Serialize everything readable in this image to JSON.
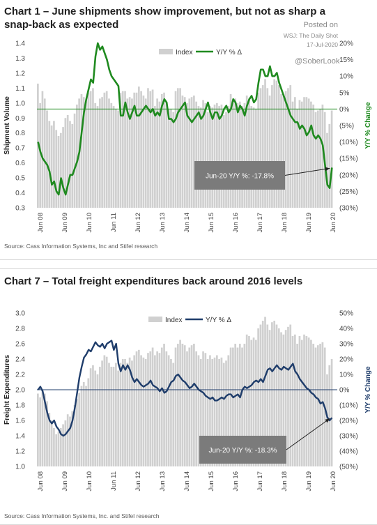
{
  "watermark": {
    "posted_on": "Posted on",
    "source_line": "WSJ: The Daily Shot",
    "date": "17-Jul-2020",
    "handle": "@SoberLook"
  },
  "chart_data": [
    {
      "type": "bar",
      "title": "Chart 1 – June shipments show improvement, but not as sharp a snap-back as expected",
      "ylabel": "Shipment Volume",
      "y2label": "Y/Y % Change",
      "ylim": [
        0.3,
        1.4
      ],
      "y2lim": [
        -30,
        20
      ],
      "yticks": [
        "1.4",
        "1.3",
        "1.2",
        "1.1",
        "1.0",
        "0.9",
        "0.8",
        "0.7",
        "0.6",
        "0.5",
        "0.4",
        "0.3"
      ],
      "y2ticks": [
        "20%",
        "15%",
        "10%",
        "5%",
        "0%",
        "(5%)",
        "(10%)",
        "(15%)",
        "(20%)",
        "(25%)",
        "(30%)"
      ],
      "xticks": [
        "Jun 08",
        "Jun 09",
        "Jun 10",
        "Jun 11",
        "Jun 12",
        "Jun 13",
        "Jun 14",
        "Jun 15",
        "Jun 16",
        "Jun 17",
        "Jun 18",
        "Jun 19",
        "Jun 20"
      ],
      "legend": [
        "Index",
        "Y/Y % Δ"
      ],
      "legend_position": "top-right",
      "index_color": "#d0d0d0",
      "line_color": "#1f8a1f",
      "annotation": "Jun-20 Y/Y %: -17.8%",
      "source": "Source: Cass Information Systems, Inc and Stifel research",
      "x_start": "Jun 08",
      "x_end": "Jun 20",
      "series": [
        {
          "name": "Index",
          "values": [
            1.13,
            1.0,
            1.08,
            1.03,
            0.95,
            0.88,
            0.85,
            0.88,
            0.82,
            0.78,
            0.8,
            0.84,
            0.9,
            0.92,
            0.88,
            0.86,
            0.93,
            0.99,
            1.03,
            1.06,
            1.04,
            1.01,
            1.07,
            1.08,
            1.1,
            1.0,
            0.98,
            1.03,
            1.04,
            1.07,
            1.08,
            1.03,
            1.0,
            0.98,
            0.96,
            0.95,
            1.07,
            1.08,
            1.08,
            1.03,
            1.04,
            1.03,
            1.07,
            1.07,
            1.11,
            1.08,
            1.05,
            1.03,
            1.1,
            1.08,
            1.09,
            0.98,
            1.03,
            1.01,
            1.06,
            1.07,
            1.0,
            0.96,
            0.96,
            0.94,
            1.08,
            1.1,
            1.1,
            1.05,
            1.04,
            1.0,
            1.03,
            1.04,
            1.05,
            1.01,
            0.98,
            0.97,
            1.02,
            1.0,
            0.94,
            0.98,
            0.97,
            0.99,
            1.0,
            0.98,
            0.99,
            0.92,
            0.94,
            0.98,
            1.06,
            1.02,
            1.03,
            1.0,
            1.01,
            0.98,
            1.0,
            1.05,
            1.03,
            0.98,
            0.97,
            0.96,
            1.07,
            1.1,
            1.12,
            1.16,
            1.1,
            1.05,
            1.12,
            1.16,
            1.15,
            1.12,
            1.06,
            1.06,
            1.08,
            1.1,
            1.12,
            1.01,
            1.04,
            0.96,
            1.02,
            1.01,
            1.04,
            1.04,
            1.03,
            1.01,
            0.99,
            0.94,
            0.95,
            0.96,
            0.99,
            0.94,
            0.8,
            0.86,
            0.95
          ]
        },
        {
          "name": "Y/Y % Δ",
          "values": [
            -10,
            -13,
            -15,
            -16,
            -17,
            -19,
            -23,
            -22,
            -25,
            -26,
            -21,
            -24,
            -26,
            -23,
            -20,
            -20,
            -18,
            -16,
            -13,
            -7,
            -1,
            3,
            6,
            9,
            8,
            16,
            20,
            18,
            19,
            17,
            15,
            12,
            10,
            9,
            8,
            7,
            -2,
            -2,
            2,
            -1,
            -3,
            -1,
            1,
            -2,
            -2,
            -1,
            0,
            1,
            0,
            -1,
            0,
            -2,
            -1,
            -2,
            1,
            3,
            2,
            -3,
            -3,
            -4,
            -3,
            -1,
            0,
            1,
            2,
            -2,
            -3,
            -4,
            -3,
            -2,
            -1,
            -3,
            -2,
            0,
            2,
            -1,
            -3,
            -1,
            -1,
            -3,
            -2,
            0,
            1,
            -1,
            0,
            3,
            2,
            -1,
            1,
            0,
            -2,
            1,
            3,
            4,
            2,
            3,
            8,
            12,
            12,
            10,
            10,
            13,
            10,
            10,
            11,
            8,
            6,
            4,
            2,
            0,
            -2,
            -3,
            -4,
            -4,
            -6,
            -5,
            -6,
            -8,
            -7,
            -5,
            -8,
            -9,
            -8,
            -9,
            -11,
            -17,
            -23,
            -24,
            -17.8
          ]
        }
      ]
    },
    {
      "type": "bar",
      "title": "Chart 7 – Total freight expenditures back around 2016 levels",
      "ylabel": "Freight Expenditures",
      "y2label": "Y/Y % Change",
      "ylim": [
        1.0,
        3.0
      ],
      "y2lim": [
        -50,
        50
      ],
      "yticks": [
        "3.0",
        "2.8",
        "2.6",
        "2.4",
        "2.2",
        "2.0",
        "1.8",
        "1.6",
        "1.4",
        "1.2",
        "1.0"
      ],
      "y2ticks": [
        "50%",
        "40%",
        "30%",
        "20%",
        "10%",
        "0%",
        "(10%)",
        "(20%)",
        "(30%)",
        "(40%)",
        "(50%)"
      ],
      "xticks": [
        "Jun 08",
        "Jun 09",
        "Jun 10",
        "Jun 11",
        "Jun 12",
        "Jun 13",
        "Jun 14",
        "Jun 15",
        "Jun 16",
        "Jun 17",
        "Jun 18",
        "Jun 19",
        "Jun 20"
      ],
      "legend": [
        "Index",
        "Y/Y % Δ"
      ],
      "legend_position": "top-right",
      "index_color": "#d0d0d0",
      "line_color": "#1f3d6b",
      "annotation": "Jun-20 Y/Y %: -18.3%",
      "source": "Source: Cass Information Systems, Inc. and Stifel research",
      "x_start": "Jun 08",
      "x_end": "Jun 20",
      "series": [
        {
          "name": "Index",
          "values": [
            1.95,
            1.9,
            2.0,
            1.95,
            1.85,
            1.7,
            1.6,
            1.5,
            1.42,
            1.45,
            1.5,
            1.55,
            1.6,
            1.68,
            1.65,
            1.72,
            1.8,
            1.88,
            1.96,
            2.05,
            2.1,
            2.05,
            2.15,
            2.28,
            2.32,
            2.25,
            2.2,
            2.3,
            2.38,
            2.45,
            2.43,
            2.35,
            2.3,
            2.3,
            2.35,
            2.25,
            2.35,
            2.4,
            2.4,
            2.35,
            2.42,
            2.38,
            2.45,
            2.5,
            2.52,
            2.45,
            2.42,
            2.4,
            2.48,
            2.5,
            2.55,
            2.45,
            2.5,
            2.48,
            2.55,
            2.6,
            2.5,
            2.45,
            2.4,
            2.35,
            2.55,
            2.6,
            2.65,
            2.6,
            2.58,
            2.5,
            2.55,
            2.58,
            2.6,
            2.5,
            2.45,
            2.4,
            2.5,
            2.48,
            2.4,
            2.45,
            2.4,
            2.42,
            2.45,
            2.4,
            2.42,
            2.35,
            2.38,
            2.45,
            2.55,
            2.55,
            2.6,
            2.55,
            2.6,
            2.55,
            2.6,
            2.72,
            2.7,
            2.65,
            2.68,
            2.65,
            2.8,
            2.85,
            2.9,
            2.95,
            2.85,
            2.78,
            2.88,
            2.9,
            2.85,
            2.8,
            2.75,
            2.72,
            2.78,
            2.82,
            2.85,
            2.7,
            2.72,
            2.6,
            2.7,
            2.65,
            2.72,
            2.7,
            2.68,
            2.65,
            2.6,
            2.55,
            2.58,
            2.6,
            2.62,
            2.55,
            2.2,
            2.32,
            2.4
          ]
        },
        {
          "name": "Y/Y % Δ",
          "values": [
            0,
            2,
            -1,
            -8,
            -15,
            -20,
            -22,
            -20,
            -24,
            -26,
            -29,
            -30,
            -29,
            -27,
            -25,
            -20,
            -12,
            -2,
            8,
            15,
            21,
            23,
            26,
            25,
            28,
            31,
            29,
            28,
            30,
            27,
            30,
            31,
            32,
            26,
            30,
            17,
            12,
            16,
            13,
            16,
            13,
            8,
            5,
            7,
            5,
            3,
            2,
            3,
            4,
            6,
            3,
            2,
            1,
            -1,
            1,
            -2,
            -1,
            2,
            5,
            6,
            9,
            10,
            8,
            6,
            5,
            3,
            1,
            2,
            4,
            2,
            0,
            -1,
            -2,
            -4,
            -5,
            -6,
            -5,
            -7,
            -7,
            -6,
            -5,
            -6,
            -4,
            -3,
            -3,
            -5,
            -4,
            -3,
            -5,
            0,
            2,
            1,
            2,
            3,
            5,
            6,
            5,
            7,
            5,
            9,
            13,
            14,
            12,
            14,
            16,
            14,
            13,
            15,
            14,
            13,
            15,
            17,
            12,
            10,
            7,
            5,
            3,
            1,
            0,
            -2,
            -3,
            -5,
            -6,
            -9,
            -8,
            -12,
            -18,
            -20,
            -18.3
          ]
        }
      ]
    }
  ]
}
